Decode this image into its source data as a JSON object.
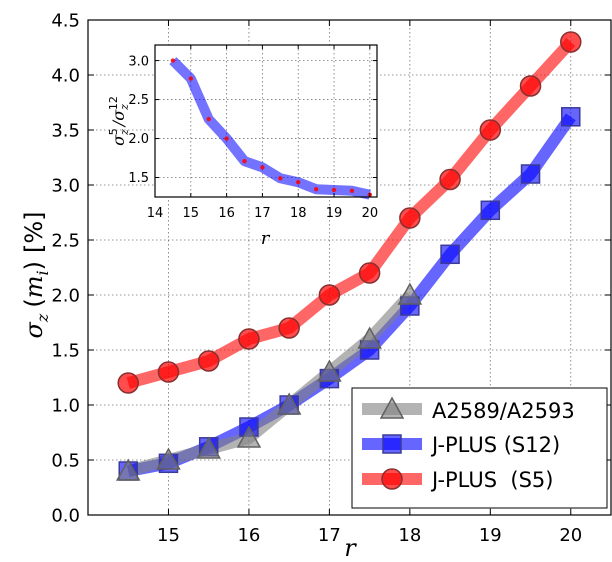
{
  "chart_data": [
    {
      "type": "line",
      "ylabel_parts": [
        "σ",
        "z",
        "(",
        "m",
        "i",
        ")",
        "[%]"
      ],
      "xlabel": "r",
      "xlim": [
        14.0,
        20.5
      ],
      "ylim": [
        0.0,
        4.5
      ],
      "xticks": [
        "15",
        "16",
        "17",
        "18",
        "19",
        "20"
      ],
      "yticks": [
        "0.0",
        "0.5",
        "1.0",
        "1.5",
        "2.0",
        "2.5",
        "3.0",
        "3.5",
        "4.0",
        "4.5"
      ],
      "grid": true,
      "legend_position": "lower-right",
      "series": [
        {
          "name": "A2589/A2593",
          "color": "#808080",
          "marker": "triangle",
          "x": [
            14.5,
            15.0,
            15.5,
            16.0,
            16.5,
            17.0,
            17.5,
            18.0
          ],
          "y": [
            0.4,
            0.5,
            0.6,
            0.7,
            1.0,
            1.3,
            1.6,
            2.0
          ]
        },
        {
          "name": "J-PLUS (S12)",
          "color": "#0000ff",
          "marker": "square",
          "x": [
            14.5,
            15.0,
            15.5,
            16.0,
            16.5,
            17.0,
            17.5,
            18.0,
            18.5,
            19.0,
            19.5,
            20.0
          ],
          "y": [
            0.4,
            0.47,
            0.62,
            0.8,
            1.0,
            1.24,
            1.5,
            1.9,
            2.37,
            2.77,
            3.1,
            3.62
          ]
        },
        {
          "name": "J-PLUS  (S5)",
          "color": "#ff0000",
          "marker": "circle",
          "x": [
            14.5,
            15.0,
            15.5,
            16.0,
            16.5,
            17.0,
            17.5,
            18.0,
            18.5,
            19.0,
            19.5,
            20.0
          ],
          "y": [
            1.2,
            1.3,
            1.4,
            1.6,
            1.7,
            2.0,
            2.2,
            2.7,
            3.05,
            3.5,
            3.9,
            4.3
          ]
        }
      ]
    },
    {
      "type": "line",
      "ylabel_parts": [
        "σ",
        "z",
        "5",
        "/σ",
        "z",
        "12"
      ],
      "xlabel": "r",
      "xlim": [
        14.0,
        20.2
      ],
      "ylim": [
        1.25,
        3.2
      ],
      "xticks": [
        "14",
        "15",
        "16",
        "17",
        "18",
        "19",
        "20"
      ],
      "yticks": [
        "1.5",
        "2.0",
        "2.5",
        "3.0"
      ],
      "grid": true,
      "series": [
        {
          "color": "#0000ff",
          "marker": "dot",
          "marker_color": "#ff0000",
          "x": [
            14.5,
            15.0,
            15.5,
            16.0,
            16.5,
            17.0,
            17.5,
            18.0,
            18.5,
            19.0,
            19.5,
            20.0
          ],
          "y": [
            3.0,
            2.77,
            2.25,
            2.0,
            1.71,
            1.63,
            1.49,
            1.44,
            1.35,
            1.34,
            1.33,
            1.28
          ]
        }
      ]
    }
  ]
}
